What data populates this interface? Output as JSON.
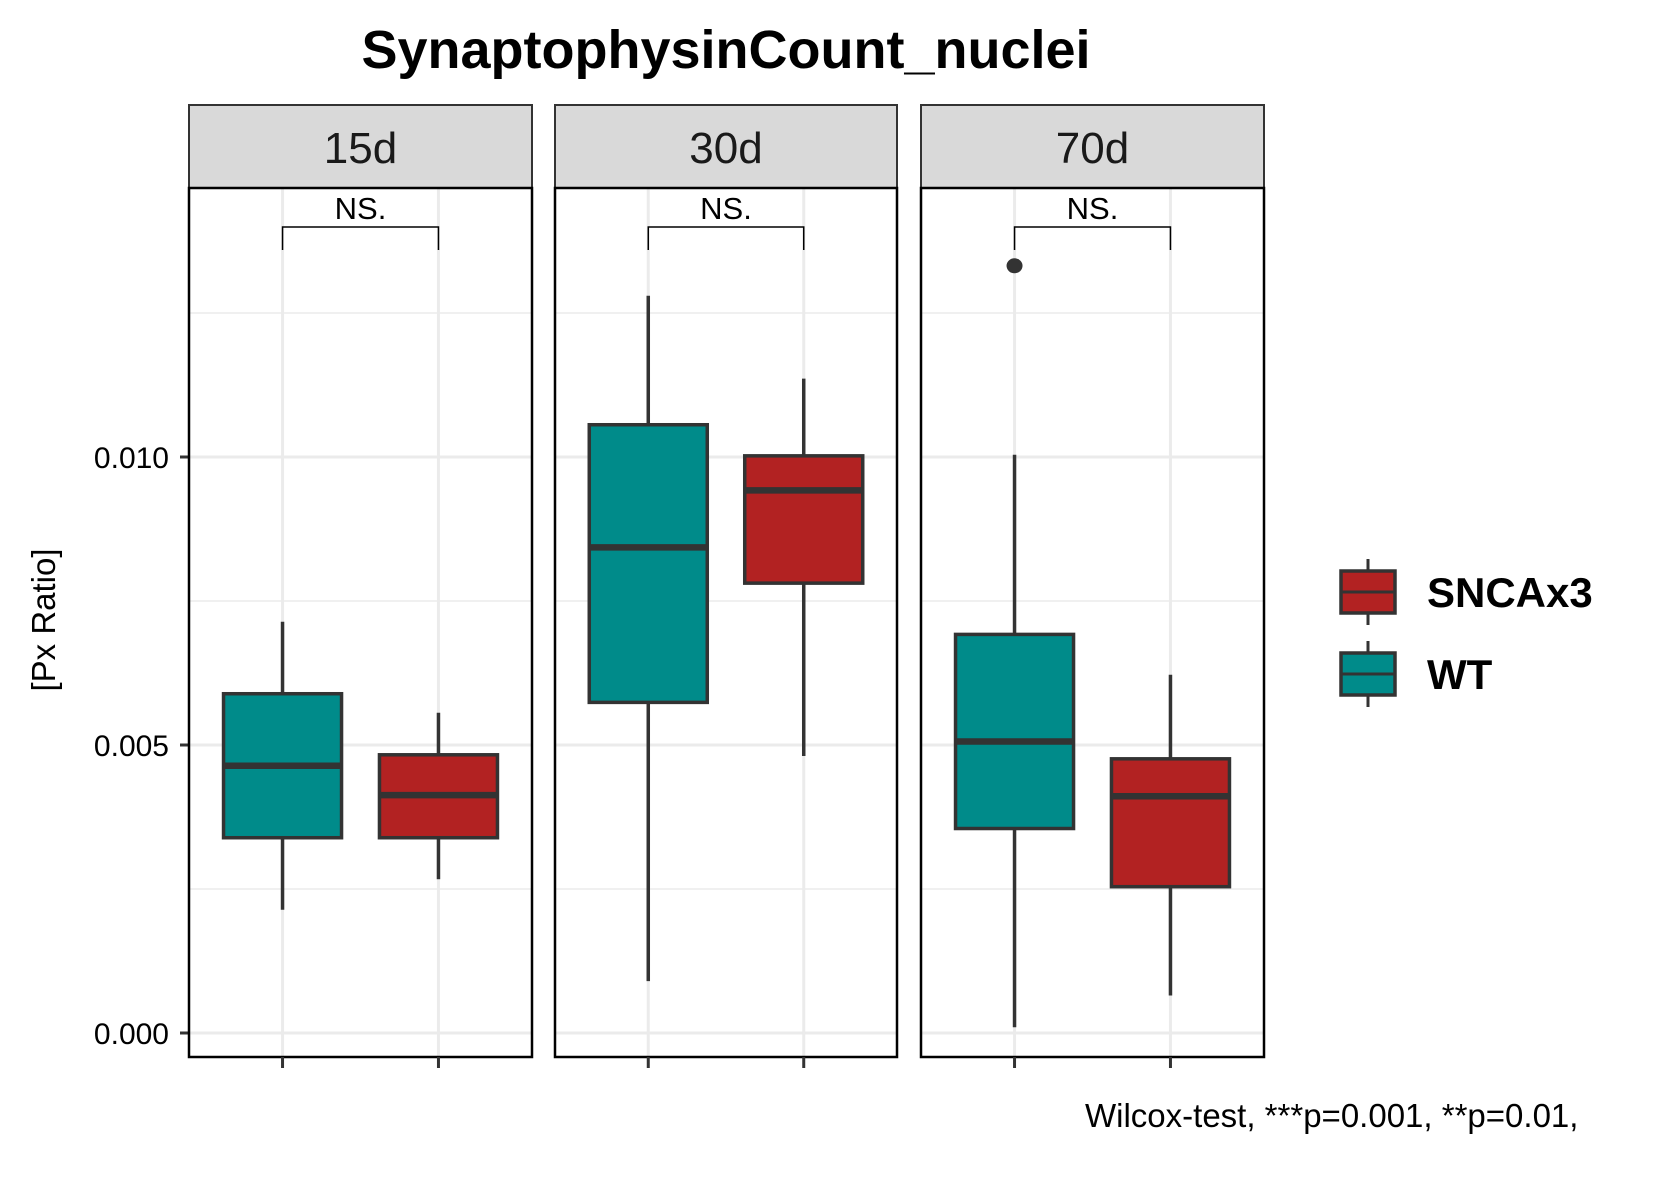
{
  "chart_data": {
    "type": "boxplot",
    "title": "SynaptophysinCount_nuclei",
    "xlabel": "",
    "ylabel": "[Px Ratio]",
    "ylim": [
      -0.0006,
      0.0147
    ],
    "yticks": [
      0.0,
      0.005,
      0.01
    ],
    "ytick_labels": [
      "0.000",
      "0.005",
      "0.010"
    ],
    "minor_gridlines": [
      0.0025,
      0.0075,
      0.0125
    ],
    "grid": true,
    "facets": [
      "15d",
      "30d",
      "70d"
    ],
    "groups": [
      "WT",
      "SNCAx3"
    ],
    "colors": {
      "WT": "#008B8A",
      "SNCAx3": "#B22222",
      "outline": "#333333",
      "strip_bg": "#D9D9D9",
      "grid": "#EBEBEB"
    },
    "panels": [
      {
        "facet": "15d",
        "significance": "NS.",
        "boxes": [
          {
            "group": "WT",
            "whisker_low": 0.00214,
            "q1": 0.00339,
            "median": 0.00464,
            "q3": 0.00589,
            "whisker_high": 0.00714,
            "outliers": []
          },
          {
            "group": "SNCAx3",
            "whisker_low": 0.00267,
            "q1": 0.00339,
            "median": 0.00413,
            "q3": 0.00483,
            "whisker_high": 0.00556,
            "outliers": []
          }
        ]
      },
      {
        "facet": "30d",
        "significance": "NS.",
        "boxes": [
          {
            "group": "WT",
            "whisker_low": 0.0009,
            "q1": 0.00574,
            "median": 0.00843,
            "q3": 0.01056,
            "whisker_high": 0.0128,
            "outliers": []
          },
          {
            "group": "SNCAx3",
            "whisker_low": 0.00481,
            "q1": 0.00781,
            "median": 0.00942,
            "q3": 0.01002,
            "whisker_high": 0.01136,
            "outliers": []
          }
        ]
      },
      {
        "facet": "70d",
        "significance": "NS.",
        "boxes": [
          {
            "group": "WT",
            "whisker_low": 0.0001,
            "q1": 0.00355,
            "median": 0.00506,
            "q3": 0.00692,
            "whisker_high": 0.01004,
            "outliers": [
              0.01332
            ]
          },
          {
            "group": "SNCAx3",
            "whisker_low": 0.00065,
            "q1": 0.00254,
            "median": 0.00411,
            "q3": 0.00476,
            "whisker_high": 0.00622,
            "outliers": []
          }
        ]
      }
    ],
    "legend": {
      "position": "right",
      "entries": [
        {
          "label": "SNCAx3",
          "color": "#B22222"
        },
        {
          "label": "WT",
          "color": "#008B8A"
        }
      ]
    },
    "caption": "Wilcox-test, ***p=0.001, **p=0.01,"
  }
}
